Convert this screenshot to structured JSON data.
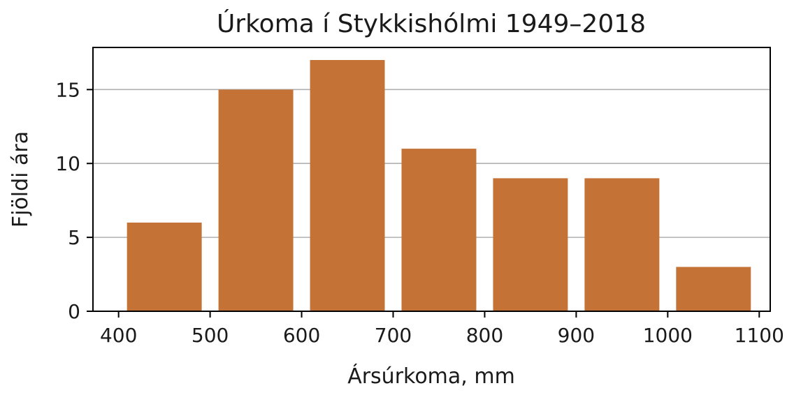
{
  "chart_data": {
    "type": "bar",
    "title": "Úrkoma í Stykkishólmi 1949–2018",
    "xlabel": "Ársúrkoma, mm",
    "ylabel": "Fjöldi ára",
    "bins": [
      {
        "x_start": 400,
        "x_end": 500,
        "value": 6
      },
      {
        "x_start": 500,
        "x_end": 600,
        "value": 15
      },
      {
        "x_start": 600,
        "x_end": 700,
        "value": 17
      },
      {
        "x_start": 700,
        "x_end": 800,
        "value": 11
      },
      {
        "x_start": 800,
        "x_end": 900,
        "value": 9
      },
      {
        "x_start": 900,
        "x_end": 1000,
        "value": 9
      },
      {
        "x_start": 1000,
        "x_end": 1100,
        "value": 3
      }
    ],
    "xlim": [
      372,
      1112
    ],
    "ylim": [
      0,
      17.85
    ],
    "xticks": [
      400,
      500,
      600,
      700,
      800,
      900,
      1000,
      1100
    ],
    "yticks": [
      0,
      5,
      10,
      15
    ],
    "grid": "y",
    "bar_color": "#c47236",
    "grid_color": "#b0b0b0"
  }
}
